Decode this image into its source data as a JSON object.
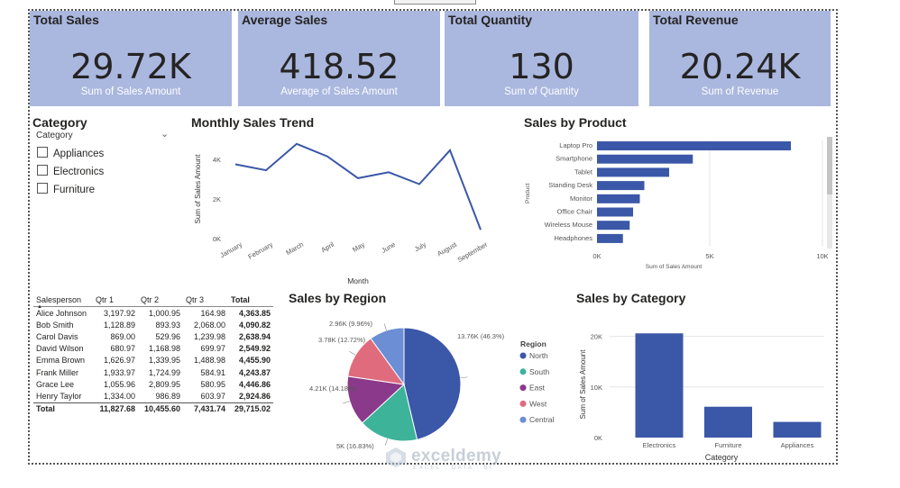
{
  "cards": [
    {
      "title": "Total Sales",
      "value": "29.72K",
      "subtitle": "Sum of Sales Amount"
    },
    {
      "title": "Average Sales",
      "value": "418.52",
      "subtitle": "Average of Sales Amount"
    },
    {
      "title": "Total Quantity",
      "value": "130",
      "subtitle": "Sum of Quantity"
    },
    {
      "title": "Total Revenue",
      "value": "20.24K",
      "subtitle": "Sum of Revenue"
    }
  ],
  "slicer": {
    "title": "Category",
    "field": "Category",
    "items": [
      "Appliances",
      "Electronics",
      "Furniture"
    ]
  },
  "colors": {
    "card_bg": "#aab7df",
    "series": "#3a57a8",
    "north": "#3a57a8",
    "south": "#3db39a",
    "east": "#8b3a8b",
    "west": "#e06b7d",
    "central": "#6b8ed4"
  },
  "chart_data": [
    {
      "type": "line",
      "title": "Monthly Sales Trend",
      "xlabel": "Month",
      "ylabel": "Sum of Sales Amount",
      "categories": [
        "January",
        "February",
        "March",
        "April",
        "May",
        "June",
        "July",
        "August",
        "September"
      ],
      "values": [
        3750,
        3450,
        4780,
        4150,
        3050,
        3350,
        2750,
        4460,
        450
      ],
      "ylim": [
        0,
        5000
      ],
      "yticks": [
        "0K",
        "2K",
        "4K"
      ],
      "ytick_values": [
        0,
        2000,
        4000
      ]
    },
    {
      "type": "bar",
      "orientation": "horizontal",
      "title": "Sales by Product",
      "xlabel": "Sum of Sales Amount",
      "ylabel": "Product",
      "categories": [
        "Laptop Pro",
        "Smartphone",
        "Tablet",
        "Standing Desk",
        "Monitor",
        "Office Chair",
        "Wireless Mouse",
        "Headphones"
      ],
      "values": [
        8600,
        4250,
        3200,
        2100,
        1900,
        1600,
        1450,
        1150
      ],
      "xlim": [
        0,
        10000
      ],
      "xticks": [
        "0K",
        "5K",
        "10K"
      ],
      "xtick_values": [
        0,
        5000,
        10000
      ]
    },
    {
      "type": "pie",
      "title": "Sales by Region",
      "legend_title": "Region",
      "slices": [
        {
          "name": "North",
          "value": 13760,
          "label": "13.76K (46.3%)"
        },
        {
          "name": "South",
          "value": 5000,
          "label": "5K (16.83%)"
        },
        {
          "name": "East",
          "value": 4210,
          "label": "4.21K (14.18%)"
        },
        {
          "name": "West",
          "value": 3780,
          "label": "3.78K (12.72%)"
        },
        {
          "name": "Central",
          "value": 2960,
          "label": "2.96K (9.96%)"
        }
      ]
    },
    {
      "type": "bar",
      "orientation": "vertical",
      "title": "Sales by Category",
      "xlabel": "Category",
      "ylabel": "Sum of Sales Amount",
      "categories": [
        "Electronics",
        "Furniture",
        "Appliances"
      ],
      "values": [
        20600,
        6100,
        3100
      ],
      "ylim": [
        0,
        21000
      ],
      "yticks": [
        "0K",
        "10K",
        "20K"
      ],
      "ytick_values": [
        0,
        10000,
        20000
      ]
    }
  ],
  "matrix": {
    "headers": [
      "Salesperson",
      "Qtr 1",
      "Qtr 2",
      "Qtr 3",
      "Total"
    ],
    "rows": [
      [
        "Alice Johnson",
        "3,197.92",
        "1,000.95",
        "164.98",
        "4,363.85"
      ],
      [
        "Bob Smith",
        "1,128.89",
        "893.93",
        "2,068.00",
        "4,090.82"
      ],
      [
        "Carol Davis",
        "869.00",
        "529.96",
        "1,239.98",
        "2,638.94"
      ],
      [
        "David Wilson",
        "680.97",
        "1,168.98",
        "699.97",
        "2,549.92"
      ],
      [
        "Emma Brown",
        "1,626.97",
        "1,339.95",
        "1,488.98",
        "4,455.90"
      ],
      [
        "Frank Miller",
        "1,933.97",
        "1,724.99",
        "584.91",
        "4,243.87"
      ],
      [
        "Grace Lee",
        "1,055.96",
        "2,809.95",
        "580.95",
        "4,446.86"
      ],
      [
        "Henry Taylor",
        "1,334.00",
        "986.89",
        "603.97",
        "2,924.86"
      ]
    ],
    "total": [
      "Total",
      "11,827.68",
      "10,455.60",
      "7,431.74",
      "29,715.02"
    ]
  },
  "watermark": {
    "name": "exceldemy",
    "tagline": "EXCEL · DATA · BI"
  }
}
